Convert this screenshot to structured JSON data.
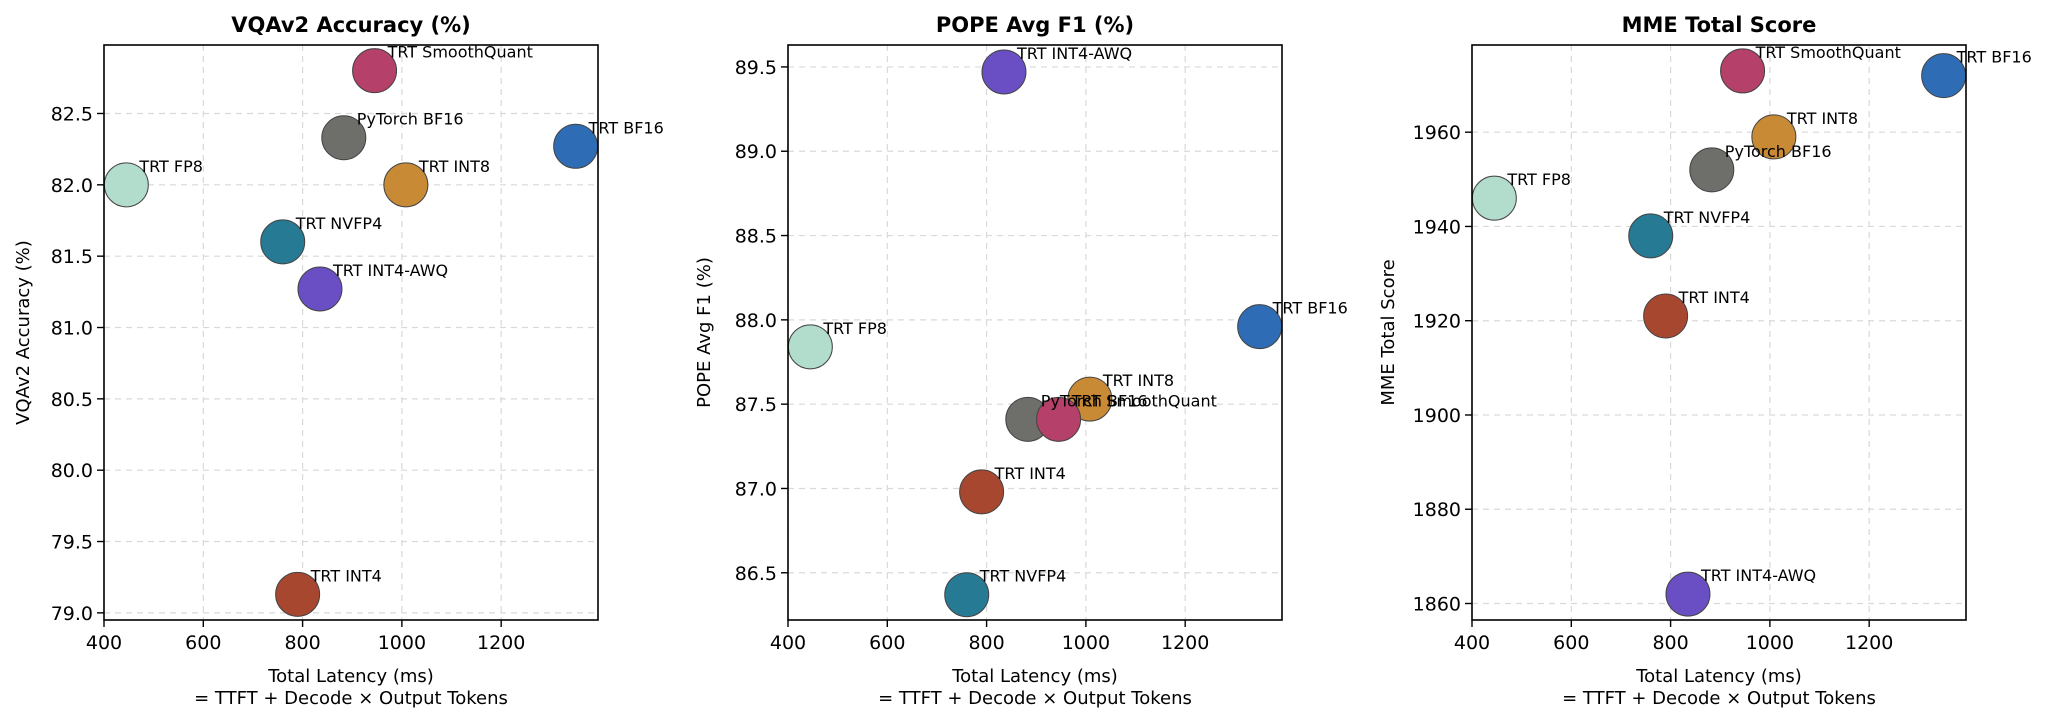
{
  "chart_data": [
    {
      "type": "scatter",
      "title": "VQAv2 Accuracy (%)",
      "xlabel": "Total Latency (ms)",
      "xlabel2": "= TTFT + Decode × Output Tokens",
      "ylabel": "VQAv2 Accuracy (%)",
      "xlim": [
        400,
        1395
      ],
      "ylim": [
        78.95,
        82.98
      ],
      "xticks": [
        400,
        600,
        800,
        1000,
        1200
      ],
      "yticks": [
        79.0,
        79.5,
        80.0,
        80.5,
        81.0,
        81.5,
        82.0,
        82.5
      ],
      "ytick_decimals": 1,
      "grid": true,
      "points": [
        {
          "label": "TRT SmoothQuant",
          "x": 945,
          "y": 82.8,
          "color": "#b5406a"
        },
        {
          "label": "PyTorch BF16",
          "x": 883,
          "y": 82.33,
          "color": "#6e6e6a"
        },
        {
          "label": "TRT BF16",
          "x": 1350,
          "y": 82.27,
          "color": "#2e6db5"
        },
        {
          "label": "TRT FP8",
          "x": 445,
          "y": 82.0,
          "color": "#b2dccb"
        },
        {
          "label": "TRT INT8",
          "x": 1008,
          "y": 82.0,
          "color": "#c98a35"
        },
        {
          "label": "TRT NVFP4",
          "x": 760,
          "y": 81.6,
          "color": "#267a94"
        },
        {
          "label": "TRT INT4-AWQ",
          "x": 835,
          "y": 81.27,
          "color": "#6a4fc4"
        },
        {
          "label": "TRT INT4",
          "x": 790,
          "y": 79.13,
          "color": "#a8472f"
        }
      ]
    },
    {
      "type": "scatter",
      "title": "POPE Avg F1 (%)",
      "xlabel": "Total Latency (ms)",
      "xlabel2": "= TTFT + Decode × Output Tokens",
      "ylabel": "POPE Avg F1 (%)",
      "xlim": [
        400,
        1395
      ],
      "ylim": [
        86.22,
        89.63
      ],
      "xticks": [
        400,
        600,
        800,
        1000,
        1200
      ],
      "yticks": [
        86.5,
        87.0,
        87.5,
        88.0,
        88.5,
        89.0,
        89.5
      ],
      "ytick_decimals": 1,
      "grid": true,
      "points": [
        {
          "label": "TRT INT4-AWQ",
          "x": 835,
          "y": 89.47,
          "color": "#6a4fc4"
        },
        {
          "label": "TRT BF16",
          "x": 1350,
          "y": 87.96,
          "color": "#2e6db5"
        },
        {
          "label": "TRT FP8",
          "x": 445,
          "y": 87.84,
          "color": "#b2dccb"
        },
        {
          "label": "TRT INT8",
          "x": 1008,
          "y": 87.53,
          "color": "#c98a35"
        },
        {
          "label": "PyTorch BF16",
          "x": 883,
          "y": 87.41,
          "color": "#6e6e6a"
        },
        {
          "label": "TRT SmoothQuant",
          "x": 945,
          "y": 87.41,
          "color": "#b5406a"
        },
        {
          "label": "TRT INT4",
          "x": 790,
          "y": 86.98,
          "color": "#a8472f"
        },
        {
          "label": "TRT NVFP4",
          "x": 760,
          "y": 86.37,
          "color": "#267a94"
        }
      ]
    },
    {
      "type": "scatter",
      "title": "MME Total Score",
      "xlabel": "Total Latency (ms)",
      "xlabel2": "= TTFT + Decode × Output Tokens",
      "ylabel": "MME Total Score",
      "xlim": [
        400,
        1395
      ],
      "ylim": [
        1856.5,
        1978.5
      ],
      "xticks": [
        400,
        600,
        800,
        1000,
        1200
      ],
      "yticks": [
        1860,
        1880,
        1900,
        1920,
        1940,
        1960
      ],
      "ytick_decimals": 0,
      "grid": true,
      "points": [
        {
          "label": "TRT SmoothQuant",
          "x": 945,
          "y": 1973,
          "color": "#b5406a"
        },
        {
          "label": "TRT BF16",
          "x": 1350,
          "y": 1972,
          "color": "#2e6db5"
        },
        {
          "label": "TRT INT8",
          "x": 1008,
          "y": 1959,
          "color": "#c98a35"
        },
        {
          "label": "PyTorch BF16",
          "x": 883,
          "y": 1952,
          "color": "#6e6e6a"
        },
        {
          "label": "TRT FP8",
          "x": 445,
          "y": 1946,
          "color": "#b2dccb"
        },
        {
          "label": "TRT NVFP4",
          "x": 760,
          "y": 1938,
          "color": "#267a94"
        },
        {
          "label": "TRT INT4",
          "x": 790,
          "y": 1921,
          "color": "#a8472f"
        },
        {
          "label": "TRT INT4-AWQ",
          "x": 835,
          "y": 1862,
          "color": "#6a4fc4"
        }
      ]
    }
  ]
}
